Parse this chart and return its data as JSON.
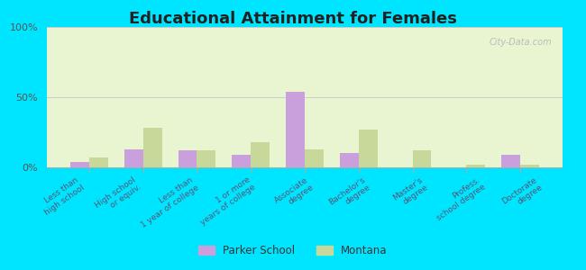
{
  "title": "Educational Attainment for Females",
  "categories": [
    "Less than\nhigh school",
    "High school\nor equiv.",
    "Less than\n1 year of college",
    "1 or more\nyears of college",
    "Associate\ndegree",
    "Bachelor's\ndegree",
    "Master's\ndegree",
    "Profess.\nschool degree",
    "Doctorate\ndegree"
  ],
  "parker_school": [
    4,
    13,
    12,
    9,
    54,
    10,
    0,
    0,
    9
  ],
  "montana": [
    7,
    28,
    12,
    18,
    13,
    27,
    12,
    2,
    2
  ],
  "parker_color": "#c9a0dc",
  "montana_color": "#c8d89a",
  "background_top": "#e8f5d0",
  "background_bottom": "#f5ffe8",
  "yticks": [
    0,
    50,
    100
  ],
  "ylim": [
    0,
    100
  ],
  "ylabel_format": "{}%",
  "bg_outer": "#00e5ff",
  "watermark": "City-Data.com"
}
